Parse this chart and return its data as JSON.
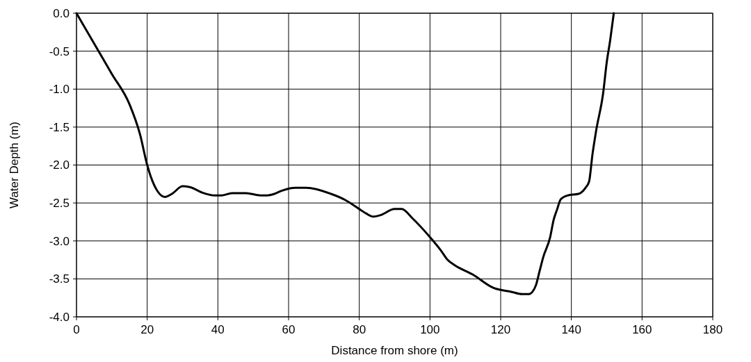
{
  "chart_data": {
    "type": "line",
    "xlabel": "Distance from shore (m)",
    "ylabel": "Water Depth (m)",
    "x": [
      0,
      5,
      10,
      15,
      18,
      20,
      21,
      23,
      25,
      27,
      30,
      32,
      36,
      39,
      41,
      44,
      48,
      52,
      54,
      56,
      58,
      62,
      65,
      72,
      76,
      80,
      82,
      84,
      86,
      90,
      92,
      95,
      100,
      103,
      105,
      107,
      112,
      118,
      123,
      126,
      128,
      129,
      130,
      131,
      132,
      134,
      135,
      136,
      137,
      139,
      142,
      144,
      145,
      146,
      147,
      149,
      150,
      151,
      152
    ],
    "series": [
      {
        "color": "#000000",
        "values": [
          0,
          -0.4,
          -0.8,
          -1.2,
          -1.6,
          -2.0,
          -2.15,
          -2.35,
          -2.42,
          -2.38,
          -2.28,
          -2.29,
          -2.37,
          -2.4,
          -2.4,
          -2.37,
          -2.37,
          -2.4,
          -2.4,
          -2.38,
          -2.34,
          -2.3,
          -2.3,
          -2.38,
          -2.46,
          -2.58,
          -2.64,
          -2.68,
          -2.66,
          -2.58,
          -2.58,
          -2.7,
          -2.95,
          -3.12,
          -3.25,
          -3.32,
          -3.44,
          -3.62,
          -3.67,
          -3.7,
          -3.7,
          -3.67,
          -3.58,
          -3.4,
          -3.22,
          -2.95,
          -2.72,
          -2.58,
          -2.45,
          -2.4,
          -2.38,
          -2.3,
          -2.22,
          -1.85,
          -1.55,
          -1.05,
          -0.65,
          -0.35,
          0
        ]
      }
    ],
    "xlim": [
      0,
      180
    ],
    "xticks": [
      0,
      20,
      40,
      60,
      80,
      100,
      120,
      140,
      160,
      180
    ],
    "ylim": [
      -4,
      0
    ],
    "yticks": [
      {
        "value": -4,
        "label": "-4.0"
      },
      {
        "value": -3.5,
        "label": "-3.5"
      },
      {
        "value": -3,
        "label": "-3.0"
      },
      {
        "value": -2.5,
        "label": "-2.5"
      },
      {
        "value": -2,
        "label": "-2.0"
      },
      {
        "value": -1.5,
        "label": "-1.5"
      },
      {
        "value": -1,
        "label": "-1.0"
      },
      {
        "value": -0.5,
        "label": "-0.5"
      },
      {
        "value": 0,
        "label": "0.0"
      }
    ],
    "grid": true,
    "marker": "none",
    "line_style": "solid"
  }
}
